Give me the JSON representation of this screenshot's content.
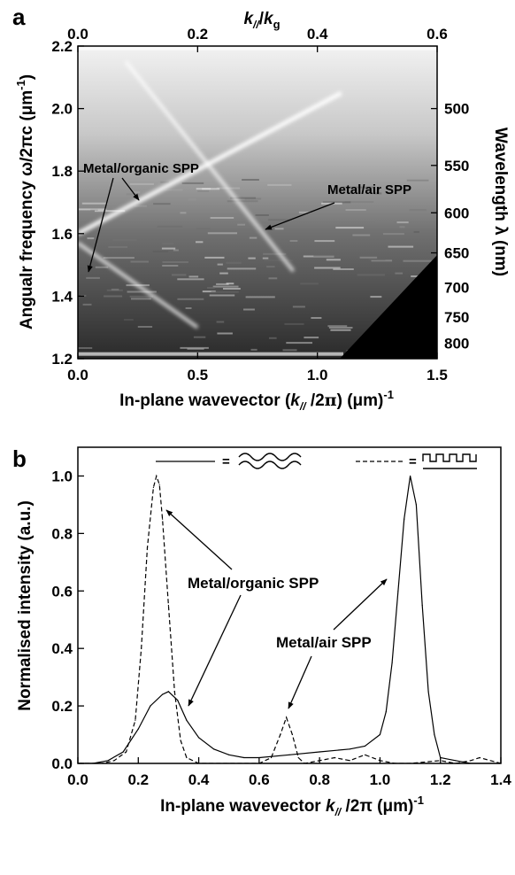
{
  "chart_data": [
    {
      "panel_label": "a",
      "type": "heatmap",
      "xlabel_main": "In-plane wavevector (",
      "xlabel_var": "k",
      "xlabel_sub": "//",
      "xlabel_post": " /2",
      "xlabel_pi": "π",
      "xlabel_unit": ")  (μm)",
      "xlabel_exp": "-1",
      "xlim": [
        0.0,
        1.5
      ],
      "xticks": [
        "0.0",
        "0.5",
        "1.0",
        "1.5"
      ],
      "ylabel": "Angualr frequency ω/2πc (μm",
      "ylabel_exp": "-1",
      "ylabel_close": ")",
      "ylim": [
        1.2,
        2.2
      ],
      "yticks": [
        "1.2",
        "1.4",
        "1.6",
        "1.8",
        "2.0",
        "2.2"
      ],
      "top_xlabel_var": "k",
      "top_xlabel_sub": "//",
      "top_xlabel_mid": "/",
      "top_xlabel_den": "k",
      "top_xlabel_densub": "g",
      "top_xlim": [
        0.0,
        0.6
      ],
      "top_xticks": [
        "0.0",
        "0.2",
        "0.4",
        "0.6"
      ],
      "right_ylabel": "Wavelength λ (nm)",
      "right_yticks": [
        "500",
        "550",
        "600",
        "650",
        "700",
        "750",
        "800"
      ],
      "annotations": [
        "Metal/organic SPP",
        "Metal/air SPP"
      ],
      "bands": [
        {
          "name": "Metal/organic SPP",
          "points": [
            [
              0.0,
              1.57
            ],
            [
              0.5,
              1.3
            ]
          ]
        },
        {
          "name": "Metal/organic SPP",
          "points": [
            [
              0.0,
              1.6
            ],
            [
              1.1,
              2.05
            ]
          ]
        },
        {
          "name": "Metal/air SPP",
          "points": [
            [
              0.2,
              2.15
            ],
            [
              0.9,
              1.48
            ]
          ]
        }
      ]
    },
    {
      "panel_label": "b",
      "type": "line",
      "xlabel_pre": "In-plane wavevector ",
      "xlabel_var": "k",
      "xlabel_sub": "//",
      "xlabel_post": " /2π (μm)",
      "xlabel_exp": "-1",
      "ylabel": "Normalised intensity (a.u.)",
      "xlim": [
        0.0,
        1.4
      ],
      "ylim": [
        0.0,
        1.1
      ],
      "xticks": [
        "0.0",
        "0.2",
        "0.4",
        "0.6",
        "0.8",
        "1.0",
        "1.2",
        "1.4"
      ],
      "yticks": [
        "0.0",
        "0.2",
        "0.4",
        "0.6",
        "0.8",
        "1.0"
      ],
      "legend_eq": "=",
      "annotations": [
        "Metal/organic SPP",
        "Metal/air SPP"
      ],
      "series": [
        {
          "style": "solid",
          "x": [
            0.0,
            0.05,
            0.1,
            0.15,
            0.2,
            0.24,
            0.28,
            0.3,
            0.33,
            0.36,
            0.4,
            0.45,
            0.5,
            0.55,
            0.6,
            0.7,
            0.8,
            0.9,
            0.95,
            1.0,
            1.02,
            1.04,
            1.06,
            1.08,
            1.1,
            1.12,
            1.14,
            1.16,
            1.18,
            1.2,
            1.25,
            1.3,
            1.4
          ],
          "y": [
            0.0,
            0.0,
            0.01,
            0.04,
            0.12,
            0.2,
            0.24,
            0.25,
            0.22,
            0.15,
            0.09,
            0.05,
            0.03,
            0.02,
            0.02,
            0.03,
            0.04,
            0.05,
            0.06,
            0.1,
            0.18,
            0.35,
            0.6,
            0.85,
            1.0,
            0.9,
            0.55,
            0.25,
            0.1,
            0.02,
            0.01,
            0.0,
            0.0
          ]
        },
        {
          "style": "dashed",
          "x": [
            0.0,
            0.08,
            0.12,
            0.16,
            0.19,
            0.21,
            0.23,
            0.25,
            0.26,
            0.27,
            0.28,
            0.3,
            0.32,
            0.34,
            0.36,
            0.4,
            0.5,
            0.6,
            0.64,
            0.67,
            0.69,
            0.71,
            0.73,
            0.75,
            0.8,
            0.85,
            0.9,
            0.95,
            1.0,
            1.05,
            1.1,
            1.2,
            1.25,
            1.3,
            1.33,
            1.4
          ],
          "y": [
            0.0,
            0.0,
            0.01,
            0.04,
            0.15,
            0.4,
            0.75,
            0.96,
            1.0,
            0.97,
            0.85,
            0.55,
            0.25,
            0.08,
            0.02,
            0.0,
            0.0,
            0.0,
            0.02,
            0.1,
            0.16,
            0.1,
            0.02,
            0.0,
            0.01,
            0.02,
            0.01,
            0.03,
            0.01,
            0.0,
            0.0,
            0.01,
            0.0,
            0.01,
            0.02,
            0.0
          ]
        }
      ]
    }
  ]
}
